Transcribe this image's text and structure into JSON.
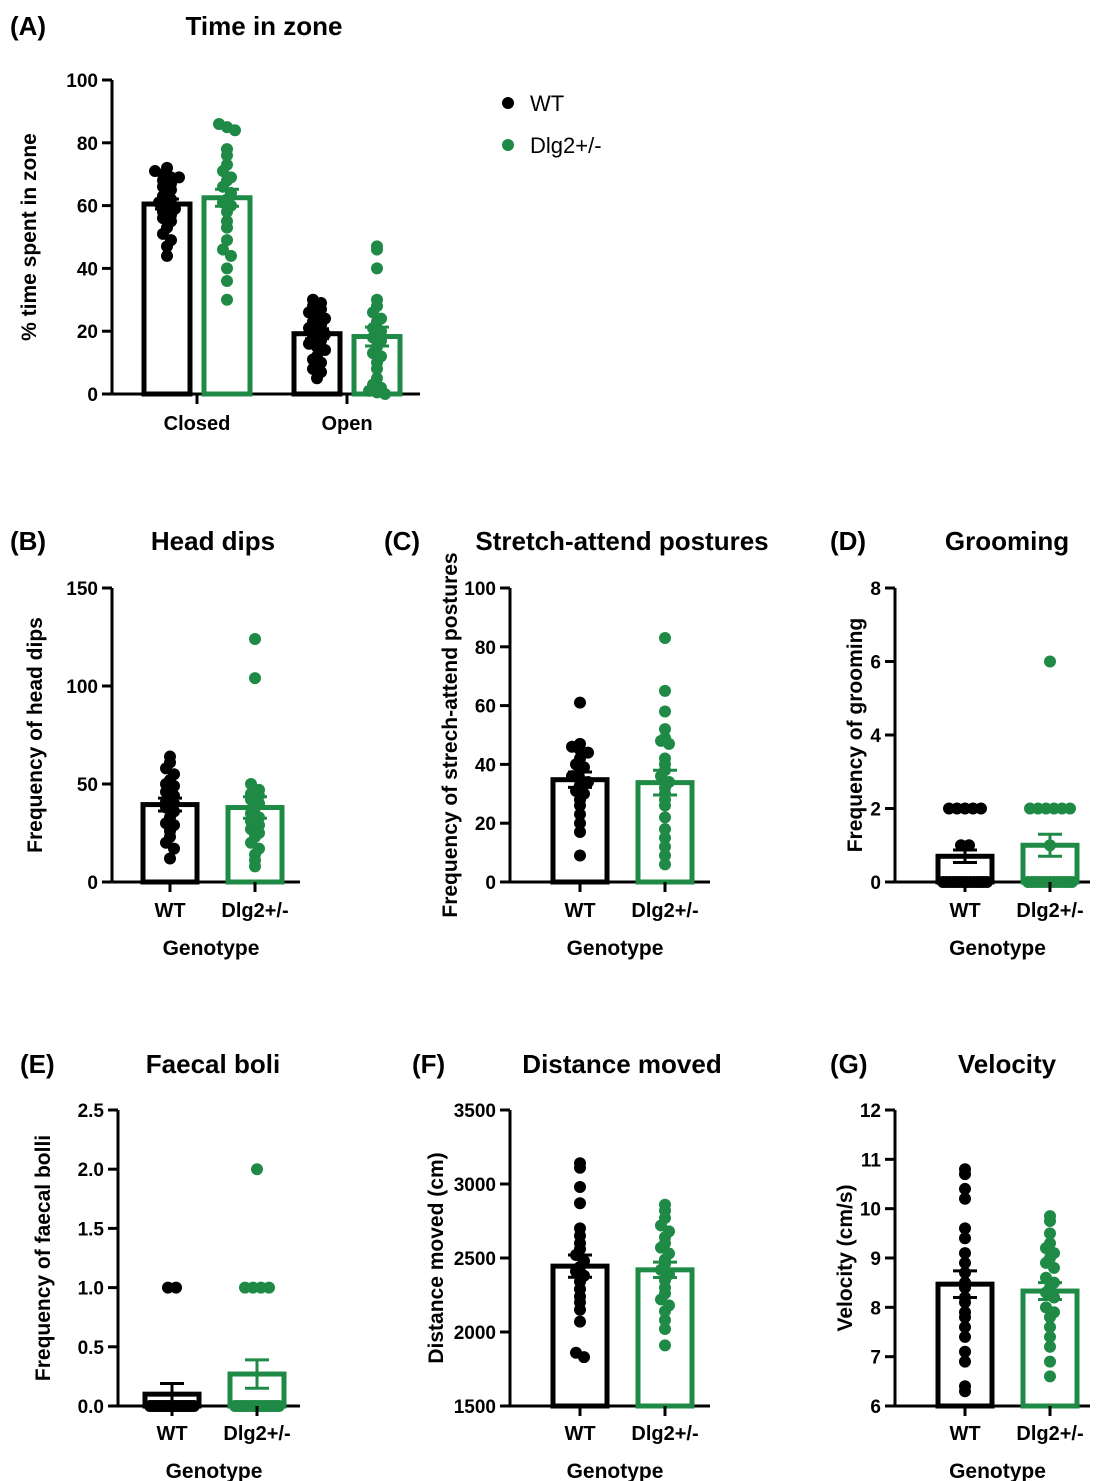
{
  "colors": {
    "wt": "#000000",
    "dlg2": "#1e8a45",
    "axis": "#000000"
  },
  "legend": [
    {
      "name": "WT",
      "color": "#000000"
    },
    {
      "name": "Dlg2+/-",
      "color": "#1e8a45"
    }
  ],
  "chart_data": [
    {
      "id": "A",
      "letter": "(A)",
      "title": "Time in zone",
      "type": "bar",
      "ylabel": "% time spent in zone",
      "xlabel": "",
      "ylim": [
        0,
        100
      ],
      "yticks": [
        "0",
        "20",
        "40",
        "60",
        "80",
        "100"
      ],
      "categories": [
        "Closed",
        "Open"
      ],
      "series": [
        {
          "name": "WT",
          "color": "#000000",
          "means": [
            60.5,
            19.2
          ],
          "sem": [
            1.6,
            1.6
          ],
          "points": [
            [
              72,
              71,
              70,
              69,
              69,
              68,
              67,
              66,
              65,
              63,
              62,
              61,
              60,
              59,
              58,
              57,
              56,
              55,
              53,
              51,
              49,
              47,
              44
            ],
            [
              30,
              29,
              28,
              27,
              26,
              25,
              24,
              23,
              22,
              21,
              20,
              19,
              18,
              17,
              16,
              15,
              14,
              12,
              11,
              10,
              8,
              7,
              5
            ]
          ]
        },
        {
          "name": "Dlg2+/-",
          "color": "#1e8a45",
          "means": [
            62.5,
            18.3
          ],
          "sem": [
            2.7,
            3.0
          ],
          "points": [
            [
              86,
              85,
              84,
              78,
              76,
              73,
              71,
              69,
              68,
              66,
              64,
              62,
              61,
              60,
              58,
              55,
              53,
              49,
              46,
              44,
              40,
              36,
              30
            ],
            [
              47,
              46,
              40,
              30,
              28,
              26,
              24,
              23,
              21,
              20,
              18,
              17,
              15,
              13,
              12,
              10,
              8,
              5,
              3,
              2,
              1,
              0.5,
              0
            ]
          ]
        }
      ]
    },
    {
      "id": "B",
      "letter": "(B)",
      "title": "Head dips",
      "type": "bar",
      "ylabel": "Frequency of head dips",
      "xlabel": "Genotype",
      "ylim": [
        0,
        150
      ],
      "yticks": [
        "0",
        "50",
        "100",
        "150"
      ],
      "categories": [
        "WT",
        "Dlg2+/-"
      ],
      "series": [
        {
          "name": "WT",
          "color": "#000000",
          "means": [
            39.5
          ],
          "sem": [
            3.3
          ],
          "points": [
            [
              64,
              61,
              58,
              55,
              52,
              50,
              49,
              46,
              44,
              41,
              40,
              38,
              36,
              33,
              30,
              29,
              26,
              23,
              20,
              17,
              12
            ]
          ]
        },
        {
          "name": "Dlg2+/-",
          "color": "#1e8a45",
          "means": [
            38
          ],
          "sem": [
            5.5
          ],
          "points": [
            [
              124,
              104,
              50,
              47,
              45,
              44,
              42,
              40,
              38,
              35,
              33,
              31,
              29,
              27,
              25,
              23,
              20,
              17,
              14,
              11,
              8
            ]
          ]
        }
      ]
    },
    {
      "id": "C",
      "letter": "(C)",
      "title": "Stretch-attend postures",
      "type": "bar",
      "ylabel": "Frequency of strech-attend postures",
      "xlabel": "Genotype",
      "ylim": [
        0,
        100
      ],
      "yticks": [
        "0",
        "20",
        "40",
        "60",
        "80",
        "100"
      ],
      "categories": [
        "WT",
        "Dlg2+/-"
      ],
      "series": [
        {
          "name": "WT",
          "color": "#000000",
          "means": [
            34.8
          ],
          "sem": [
            2.6
          ],
          "points": [
            [
              61,
              47,
              46,
              45,
              44,
              42,
              40,
              39,
              38,
              36,
              35,
              34,
              33,
              31,
              30,
              28,
              26,
              23,
              20,
              17,
              9
            ]
          ]
        },
        {
          "name": "Dlg2+/-",
          "color": "#1e8a45",
          "means": [
            33.8
          ],
          "sem": [
            4.2
          ],
          "points": [
            [
              83,
              65,
              58,
              52,
              49,
              48,
              47,
              42,
              40,
              38,
              36,
              34,
              32,
              30,
              28,
              26,
              22,
              18,
              15,
              12,
              9,
              6
            ]
          ]
        }
      ]
    },
    {
      "id": "D",
      "letter": "(D)",
      "title": "Grooming",
      "type": "bar",
      "ylabel": "Frequency of grooming",
      "xlabel": "Genotype",
      "ylim": [
        0,
        8
      ],
      "yticks": [
        "0",
        "2",
        "4",
        "6",
        "8"
      ],
      "categories": [
        "WT",
        "Dlg2+/-"
      ],
      "series": [
        {
          "name": "WT",
          "color": "#000000",
          "means": [
            0.7
          ],
          "sem": [
            0.17
          ],
          "points": [
            [
              2,
              2,
              2,
              2,
              2,
              1,
              1,
              0,
              0,
              0,
              0,
              0,
              0,
              0,
              0,
              0,
              0,
              0,
              0,
              0,
              0
            ]
          ]
        },
        {
          "name": "Dlg2+/-",
          "color": "#1e8a45",
          "means": [
            1.0
          ],
          "sem": [
            0.3
          ],
          "points": [
            [
              6,
              2,
              2,
              2,
              2,
              2,
              2,
              1,
              0,
              0,
              0,
              0,
              0,
              0,
              0,
              0,
              0,
              0,
              0,
              0,
              0
            ]
          ]
        }
      ]
    },
    {
      "id": "E",
      "letter": "(E)",
      "title": "Faecal boli",
      "type": "bar",
      "ylabel": "Frequency of faecal bolli",
      "xlabel": "Genotype",
      "ylim": [
        0,
        2.5
      ],
      "yticks": [
        "0.0",
        "0.5",
        "1.0",
        "1.5",
        "2.0",
        "2.5"
      ],
      "categories": [
        "WT",
        "Dlg2+/-"
      ],
      "series": [
        {
          "name": "WT",
          "color": "#000000",
          "means": [
            0.1
          ],
          "sem": [
            0.09
          ],
          "points": [
            [
              1,
              1,
              0,
              0,
              0,
              0,
              0,
              0,
              0,
              0,
              0,
              0,
              0,
              0,
              0,
              0,
              0,
              0,
              0,
              0,
              0
            ]
          ]
        },
        {
          "name": "Dlg2+/-",
          "color": "#1e8a45",
          "means": [
            0.27
          ],
          "sem": [
            0.12
          ],
          "points": [
            [
              2,
              1,
              1,
              1,
              1,
              0,
              0,
              0,
              0,
              0,
              0,
              0,
              0,
              0,
              0,
              0,
              0,
              0,
              0,
              0,
              0
            ]
          ]
        }
      ]
    },
    {
      "id": "F",
      "letter": "(F)",
      "title": "Distance moved",
      "type": "bar",
      "ylabel": "Distance moved (cm)",
      "xlabel": "Genotype",
      "ylim": [
        1500,
        3500
      ],
      "yticks": [
        "1500",
        "2000",
        "2500",
        "3000",
        "3500"
      ],
      "categories": [
        "WT",
        "Dlg2+/-"
      ],
      "series": [
        {
          "name": "WT",
          "color": "#000000",
          "means": [
            2445
          ],
          "sem": [
            75
          ],
          "points": [
            [
              3140,
              3110,
              2980,
              2870,
              2700,
              2650,
              2600,
              2560,
              2520,
              2480,
              2440,
              2410,
              2380,
              2340,
              2290,
              2240,
              2200,
              2150,
              2070,
              1860,
              1830
            ]
          ]
        },
        {
          "name": "Dlg2+/-",
          "color": "#1e8a45",
          "means": [
            2420
          ],
          "sem": [
            52
          ],
          "points": [
            [
              2860,
              2820,
              2770,
              2720,
              2680,
              2640,
              2600,
              2570,
              2530,
              2490,
              2460,
              2420,
              2390,
              2350,
              2300,
              2260,
              2220,
              2180,
              2140,
              2080,
              2020,
              1910
            ]
          ]
        }
      ]
    },
    {
      "id": "G",
      "letter": "(G)",
      "title": "Velocity",
      "type": "bar",
      "ylabel": "Velocity (cm/s)",
      "xlabel": "Genotype",
      "ylim": [
        6,
        12
      ],
      "yticks": [
        "6",
        "7",
        "8",
        "9",
        "10",
        "11",
        "12"
      ],
      "categories": [
        "WT",
        "Dlg2+/-"
      ],
      "series": [
        {
          "name": "WT",
          "color": "#000000",
          "means": [
            8.47
          ],
          "sem": [
            0.27
          ],
          "points": [
            [
              10.8,
              10.7,
              10.4,
              10.2,
              9.6,
              9.4,
              9.1,
              8.9,
              8.7,
              8.5,
              8.4,
              8.2,
              8.1,
              7.9,
              7.8,
              7.6,
              7.4,
              7.1,
              6.9,
              6.4,
              6.3
            ]
          ]
        },
        {
          "name": "Dlg2+/-",
          "color": "#1e8a45",
          "means": [
            8.33
          ],
          "sem": [
            0.17
          ],
          "points": [
            [
              9.85,
              9.75,
              9.5,
              9.3,
              9.2,
              9.1,
              9.0,
              8.9,
              8.8,
              8.6,
              8.5,
              8.4,
              8.3,
              8.2,
              8.0,
              7.9,
              7.8,
              7.6,
              7.4,
              7.2,
              6.9,
              6.6
            ]
          ]
        }
      ]
    }
  ]
}
